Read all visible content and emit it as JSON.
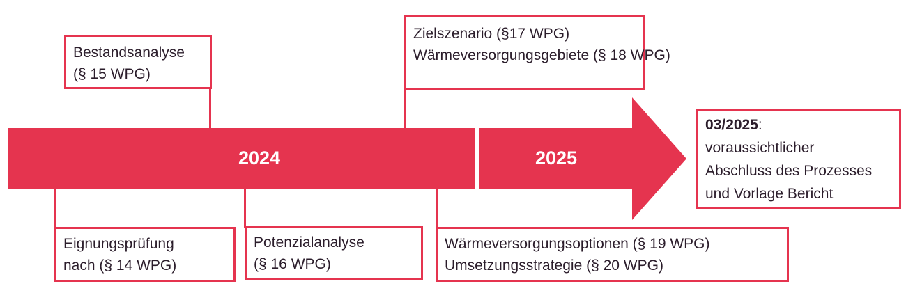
{
  "colors": {
    "accent": "#e5344f",
    "text": "#2b1d2b"
  },
  "timeline": {
    "year1": "2024",
    "year2": "2025"
  },
  "boxes": {
    "bestand": {
      "line1": "Bestandsanalyse",
      "line2": "(§ 15 WPG)"
    },
    "ziel": {
      "line1": "Zielszenario (§17 WPG)",
      "line2": "Wärmeversorgungsgebiete (§ 18 WPG)"
    },
    "eignung": {
      "line1": "Eignungsprüfung",
      "line2": "nach (§ 14 WPG)"
    },
    "potenzial": {
      "line1": "Potenzialanalyse",
      "line2": "(§ 16 WPG)"
    },
    "optionen": {
      "line1": "Wärmeversorgungsoptionen (§ 19 WPG)",
      "line2": "Umsetzungsstrategie (§ 20 WPG)"
    },
    "abschluss": {
      "date": "03/2025",
      "colon": ":",
      "line1": "voraussichtlicher",
      "line2": "Abschluss des Prozesses",
      "line3": "und Vorlage Bericht"
    }
  }
}
